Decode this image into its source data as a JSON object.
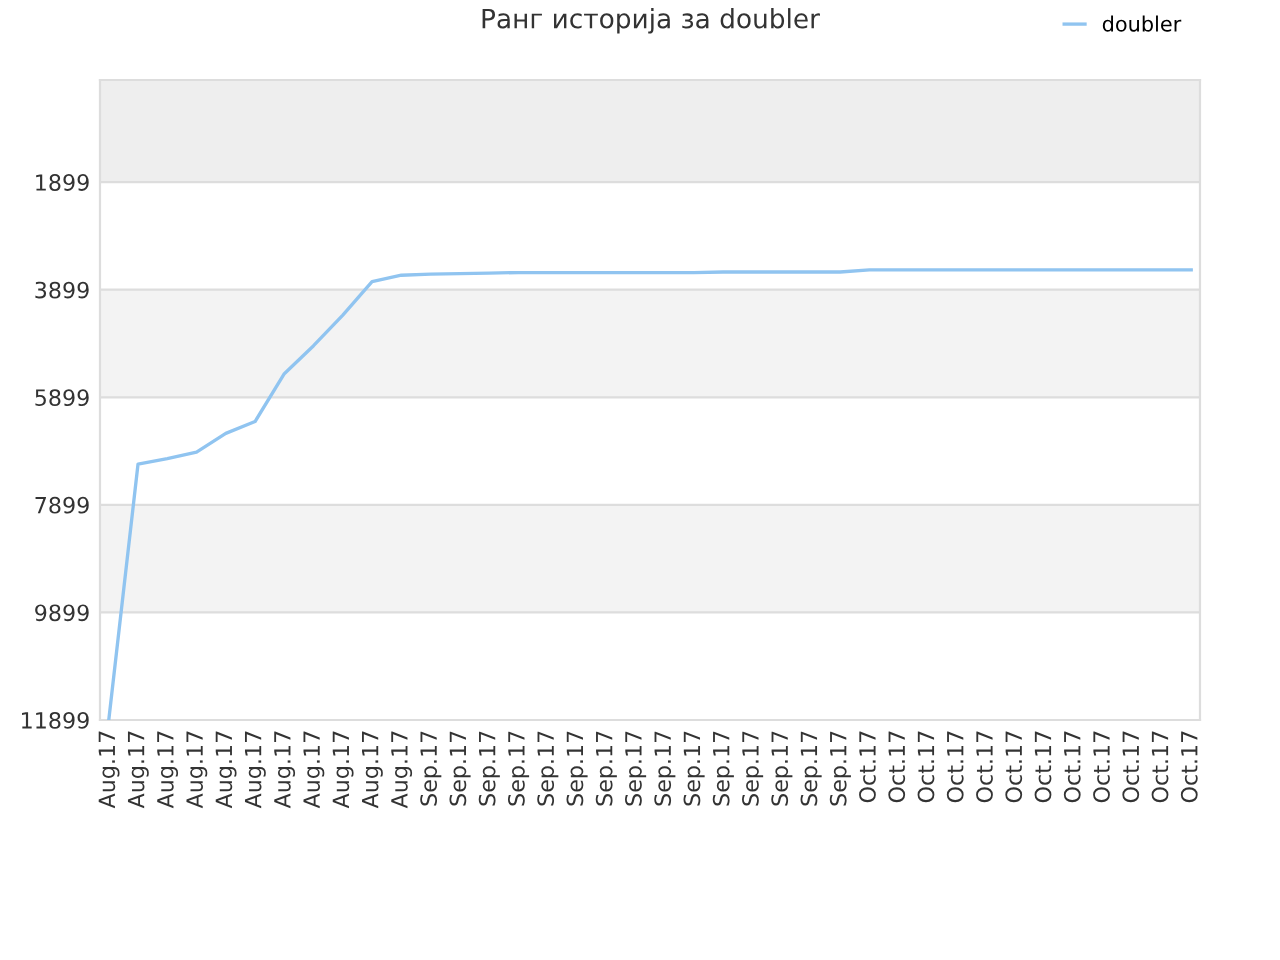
{
  "chart_data": {
    "type": "line",
    "title": "Ранг историја за doubler",
    "categories": [
      "Aug.17",
      "Aug.17",
      "Aug.17",
      "Aug.17",
      "Aug.17",
      "Aug.17",
      "Aug.17",
      "Aug.17",
      "Aug.17",
      "Aug.17",
      "Aug.17",
      "Sep.17",
      "Sep.17",
      "Sep.17",
      "Sep.17",
      "Sep.17",
      "Sep.17",
      "Sep.17",
      "Sep.17",
      "Sep.17",
      "Sep.17",
      "Sep.17",
      "Sep.17",
      "Sep.17",
      "Sep.17",
      "Sep.17",
      "Oct.17",
      "Oct.17",
      "Oct.17",
      "Oct.17",
      "Oct.17",
      "Oct.17",
      "Oct.17",
      "Oct.17",
      "Oct.17",
      "Oct.17",
      "Oct.17",
      "Oct.17"
    ],
    "series": [
      {
        "name": "doubler",
        "color": "#90c4f0",
        "values": [
          11899,
          7140,
          7040,
          6920,
          6570,
          6350,
          5460,
          4940,
          4370,
          3750,
          3630,
          3610,
          3600,
          3590,
          3580,
          3580,
          3580,
          3580,
          3580,
          3580,
          3580,
          3570,
          3570,
          3570,
          3570,
          3570,
          3530,
          3530,
          3530,
          3530,
          3530,
          3530,
          3530,
          3530,
          3530,
          3530,
          3530,
          3530
        ]
      }
    ],
    "ylim": [
      11899,
      0
    ],
    "yticks": [
      1899,
      3899,
      5899,
      7899,
      9899,
      11899
    ],
    "grid": "y",
    "legend": "top right",
    "bands": [
      {
        "axis": "y",
        "from": 0,
        "to": 1899,
        "color": "#eeeeee"
      },
      {
        "axis": "y",
        "from": 3899,
        "to": 5899,
        "color": "#f3f3f3"
      },
      {
        "axis": "y",
        "from": 7899,
        "to": 9899,
        "color": "#f3f3f3"
      }
    ]
  }
}
